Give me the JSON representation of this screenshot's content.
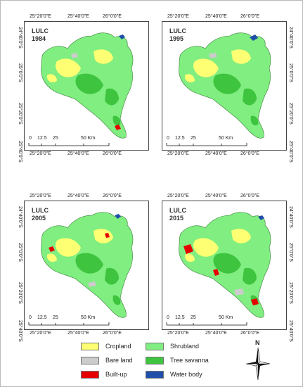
{
  "colors": {
    "cropland": "#ffff73",
    "bare_land": "#cccccc",
    "built_up": "#e60000",
    "shrubland": "#80ee80",
    "tree_savanna": "#3ec43e",
    "water_body": "#1f4fa8"
  },
  "axis": {
    "top_ticks": [
      "25°20'0\"E",
      "25°40'0\"E",
      "26°0'0\"E"
    ],
    "bottom_ticks": [
      "25°20'0\"E",
      "25°40'0\"E",
      "26°0'0\"E"
    ],
    "side_ticks": [
      "24°40'0\"S",
      "25°0'0\"S",
      "25°20'0\"S",
      "25°40'0\"S"
    ]
  },
  "scale_bar": {
    "labels": [
      "0",
      "12.5",
      "25",
      "50 Km"
    ]
  },
  "maps": [
    {
      "title": "LULC",
      "year": "1984"
    },
    {
      "title": "LULC",
      "year": "1995"
    },
    {
      "title": "LULC",
      "year": "2005"
    },
    {
      "title": "LULC",
      "year": "2015"
    }
  ],
  "legend": [
    {
      "label": "Cropland",
      "color_key": "cropland"
    },
    {
      "label": "Shrubland",
      "color_key": "shrubland"
    },
    {
      "label": "Bare land",
      "color_key": "bare_land"
    },
    {
      "label": "Tree savanna",
      "color_key": "tree_savanna"
    },
    {
      "label": "Built-up",
      "color_key": "built_up"
    },
    {
      "label": "Water body",
      "color_key": "water_body"
    }
  ],
  "north_arrow": {
    "label": "N",
    "icon": "compass-rose-icon"
  }
}
